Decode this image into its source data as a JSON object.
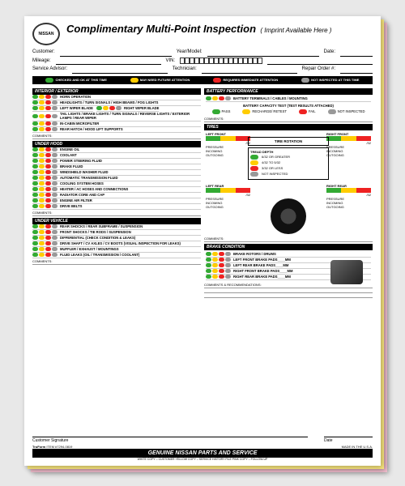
{
  "brand": "NISSAN",
  "title": "Complimentary Multi-Point Inspection",
  "imprint": "( Imprint Available Here )",
  "fields": {
    "customer": "Customer:",
    "yearmodel": "Year/Model:",
    "date": "Date:",
    "mileage": "Mileage:",
    "vin": "VIN:",
    "advisor": "Service Advisor:",
    "tech": "Technician:",
    "ro": "Repair Order #:"
  },
  "legend": {
    "green": "CHECKED AND OK AT THIS TIME",
    "yellow": "MAY NEED FUTURE ATTENTION",
    "red": "REQUIRES IMMEDIATE ATTENTION",
    "grey": "NOT INSPECTED AT THIS TIME"
  },
  "sections": {
    "interior": {
      "title": "INTERIOR / EXTERIOR",
      "items": [
        "HORN OPERATION",
        "HEADLIGHTS / TURN SIGNALS / HIGH BEAMS / FOG LIGHTS",
        "LEFT WIPER BLADE",
        "TAIL LIGHTS / BRAKE LIGHTS / TURN SIGNALS / REVERSE LIGHTS / EXTERIOR LAMPS / REAR WIPER",
        "IN-CABIN MICROFILTER",
        "REAR HATCH / HOOD LIFT SUPPORTS"
      ],
      "right_wiper": "RIGHT WIPER BLADE"
    },
    "underhood": {
      "title": "UNDER HOOD",
      "items": [
        "ENGINE OIL",
        "COOLANT",
        "POWER STEERING FLUID",
        "BRAKE FLUID",
        "WINDSHIELD WASHER FLUID",
        "AUTOMATIC TRANSMISSION FLUID",
        "COOLING SYSTEM HOSES",
        "HEATER / AC HOSES AND CONNECTIONS",
        "RADIATOR CORE AND CAP",
        "ENGINE AIR FILTER",
        "DRIVE BELTS"
      ]
    },
    "undervehicle": {
      "title": "UNDER VEHICLE",
      "items": [
        "REAR SHOCKS / REAR SUBFRAME / SUSPENSION",
        "FRONT SHOCKS / TIE RODS / SUSPENSION",
        "DIFFERENTIAL (CHECK CONDITION & LEAKS)",
        "DRIVE SHAFT / CV AXLES / CV BOOTS (VISUAL INSPECTION FOR LEAKS)",
        "MUFFLER / EXHAUST / MOUNTINGS",
        "FLUID LEAKS (OIL / TRANSMISSION / COOLANT)"
      ]
    },
    "battery": {
      "title": "BATTERY PERFORMANCE",
      "item": "BATTERY TERMINALS / CABLES / MOUNTING",
      "test": "BATTERY CAPACITY TEST (TEST RESULTS ATTACHED)",
      "pass": "PASS",
      "recharge": "RECHARGE/ RETEST",
      "fail": "FAIL",
      "ni": "NOT INSPECTED"
    },
    "tires": {
      "title": "TIRES",
      "lf": "LEFT FRONT",
      "rf": "RIGHT FRONT",
      "lr": "LEFT REAR",
      "rr": "RIGHT REAR",
      "press": "PRESSURE",
      "in": "INCOMING",
      "out": "OUTGOING",
      "frac": "/32",
      "rot": "TIRE ROTATION",
      "tread": "TREAD DEPTH",
      "t1": "6/32 OR GREATER",
      "t2": "4/32 TO 5/32",
      "t3": "3/32 OR LESS",
      "t4": "NOT INSPECTED"
    },
    "brake": {
      "title": "BRAKE CONDITION",
      "rotors": "BRAKE ROTORS / DRUMS",
      "pads": [
        "LEFT FRONT BRAKE PADS____MM",
        "LEFT REAR BRAKE PADS____MM",
        "RIGHT FRONT BRAKE PADS____MM",
        "RIGHT REAR BRAKE PADS____MM"
      ]
    }
  },
  "comments": "COMMENTS:",
  "comrec": "COMMENTS & RECOMMENDATIONS:",
  "sig": "Customer Signature",
  "sigdate": "Date",
  "truform": "TruForm",
  "item": "ITEM #7294-0819",
  "copies": "WHITE COPY – CUSTOMER     YELLOW COPY – SERVICE HISTORY FILE     PINK COPY – FOLLOW-UP",
  "genuine": "GENUINE NISSAN PARTS AND SERVICE",
  "made": "MADE IN THE U.S.A.",
  "colors": {
    "green": "#33aa33",
    "yellow": "#ffcc00",
    "red": "#ee2222",
    "grey": "#999999",
    "black": "#000000"
  }
}
